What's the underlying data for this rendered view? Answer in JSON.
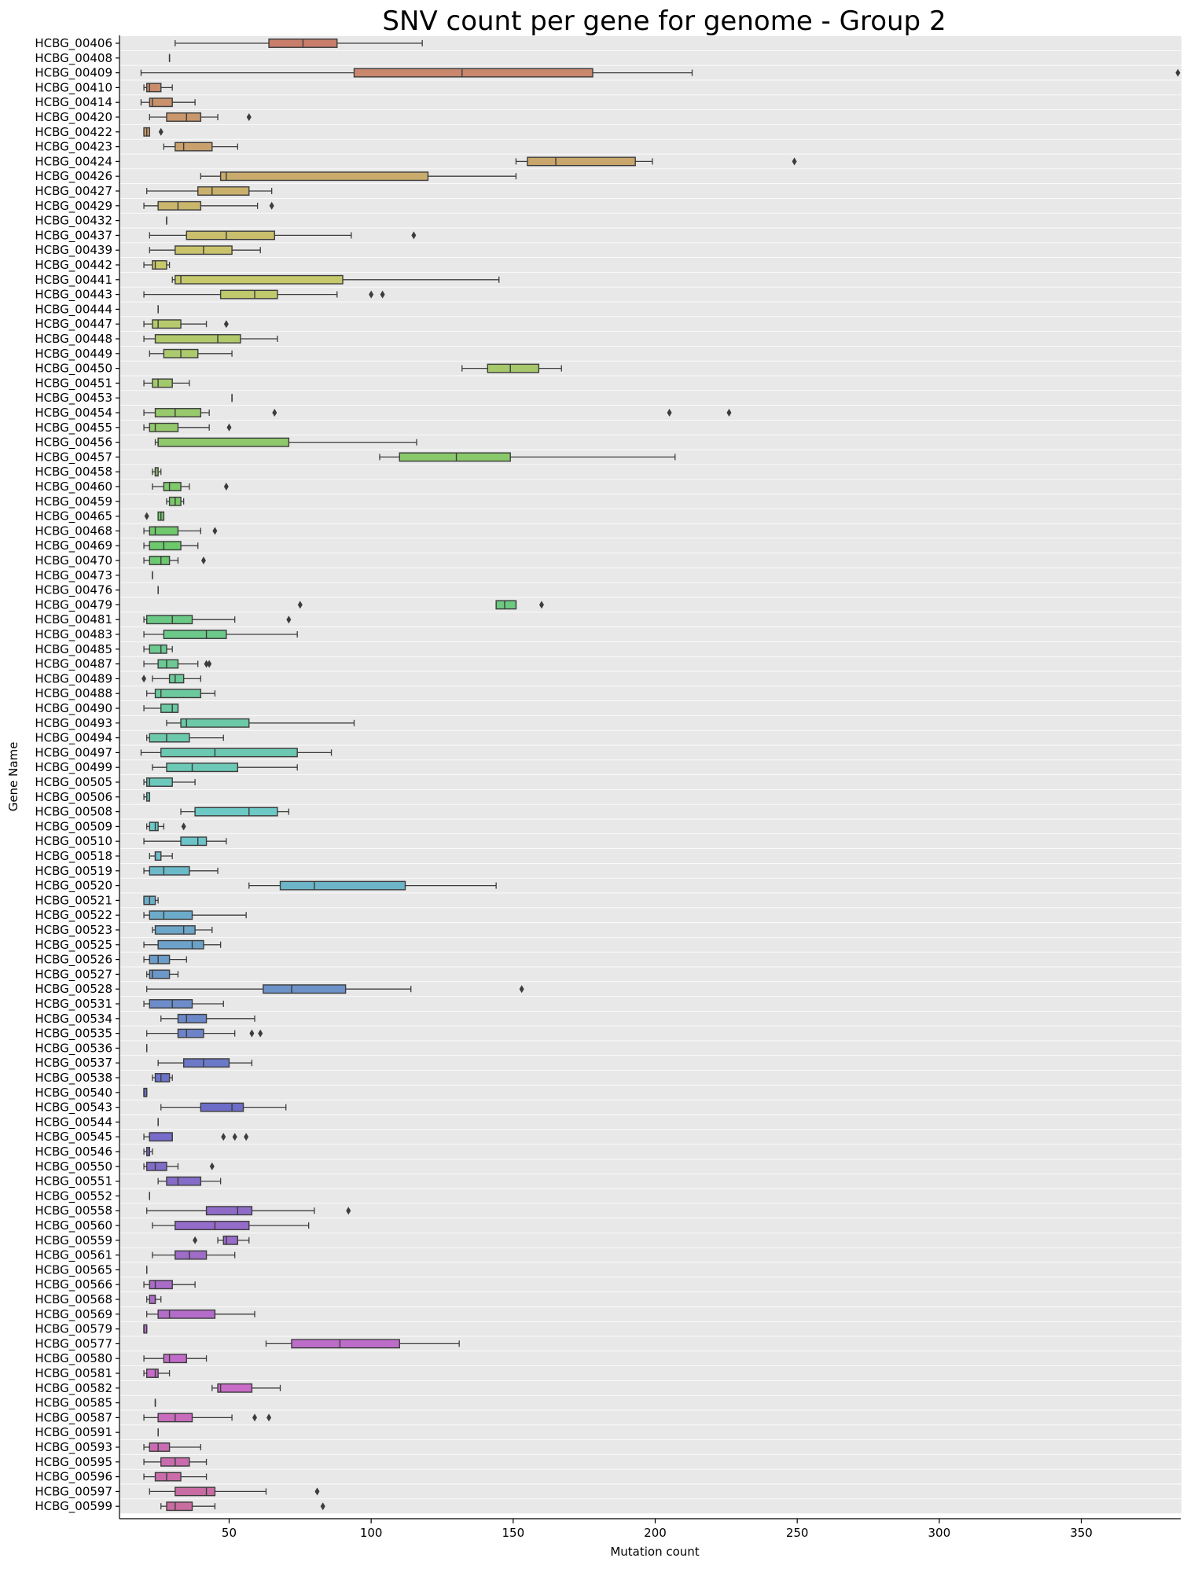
{
  "chart_data": {
    "type": "box",
    "orientation": "horizontal",
    "title": "SNV count per gene for genome - Group 2",
    "xlabel": "Mutation count",
    "ylabel": "Gene Name",
    "xlim": [
      15,
      385
    ],
    "x_ticks": [
      50,
      100,
      150,
      200,
      250,
      300,
      350
    ],
    "grid": false,
    "alternating_row_bands": true,
    "band_color": "#e8e8e8",
    "palette": "husl",
    "categories": [
      "HCBG_00406",
      "HCBG_00408",
      "HCBG_00409",
      "HCBG_00410",
      "HCBG_00414",
      "HCBG_00420",
      "HCBG_00422",
      "HCBG_00423",
      "HCBG_00424",
      "HCBG_00426",
      "HCBG_00427",
      "HCBG_00429",
      "HCBG_00432",
      "HCBG_00437",
      "HCBG_00439",
      "HCBG_00442",
      "HCBG_00441",
      "HCBG_00443",
      "HCBG_00444",
      "HCBG_00447",
      "HCBG_00448",
      "HCBG_00449",
      "HCBG_00450",
      "HCBG_00451",
      "HCBG_00453",
      "HCBG_00454",
      "HCBG_00455",
      "HCBG_00456",
      "HCBG_00457",
      "HCBG_00458",
      "HCBG_00460",
      "HCBG_00459",
      "HCBG_00465",
      "HCBG_00468",
      "HCBG_00469",
      "HCBG_00470",
      "HCBG_00473",
      "HCBG_00476",
      "HCBG_00479",
      "HCBG_00481",
      "HCBG_00483",
      "HCBG_00485",
      "HCBG_00487",
      "HCBG_00489",
      "HCBG_00488",
      "HCBG_00490",
      "HCBG_00493",
      "HCBG_00494",
      "HCBG_00497",
      "HCBG_00499",
      "HCBG_00505",
      "HCBG_00506",
      "HCBG_00508",
      "HCBG_00509",
      "HCBG_00510",
      "HCBG_00518",
      "HCBG_00519",
      "HCBG_00520",
      "HCBG_00521",
      "HCBG_00522",
      "HCBG_00523",
      "HCBG_00525",
      "HCBG_00526",
      "HCBG_00527",
      "HCBG_00528",
      "HCBG_00531",
      "HCBG_00534",
      "HCBG_00535",
      "HCBG_00536",
      "HCBG_00537",
      "HCBG_00538",
      "HCBG_00540",
      "HCBG_00543",
      "HCBG_00544",
      "HCBG_00545",
      "HCBG_00546",
      "HCBG_00550",
      "HCBG_00551",
      "HCBG_00552",
      "HCBG_00558",
      "HCBG_00560",
      "HCBG_00559",
      "HCBG_00561",
      "HCBG_00565",
      "HCBG_00566",
      "HCBG_00568",
      "HCBG_00569",
      "HCBG_00579",
      "HCBG_00577",
      "HCBG_00580",
      "HCBG_00581",
      "HCBG_00582",
      "HCBG_00585",
      "HCBG_00587",
      "HCBG_00591",
      "HCBG_00593",
      "HCBG_00595",
      "HCBG_00596",
      "HCBG_00597",
      "HCBG_00599"
    ],
    "stats": [
      [
        31,
        64,
        76,
        88,
        118,
        []
      ],
      [
        29,
        29,
        29,
        29,
        29,
        []
      ],
      [
        19,
        94,
        132,
        178,
        213,
        [
          384
        ]
      ],
      [
        20,
        21,
        22,
        26,
        30,
        []
      ],
      [
        19,
        22,
        23,
        30,
        38,
        []
      ],
      [
        22,
        28,
        35,
        40,
        46,
        [
          57
        ]
      ],
      [
        20,
        20,
        21,
        22,
        22,
        [
          26
        ]
      ],
      [
        27,
        31,
        34,
        44,
        53,
        []
      ],
      [
        151,
        155,
        165,
        193,
        199,
        [
          249
        ]
      ],
      [
        40,
        47,
        49,
        120,
        151,
        []
      ],
      [
        21,
        39,
        44,
        57,
        65,
        []
      ],
      [
        20,
        25,
        32,
        40,
        60,
        [
          65
        ]
      ],
      [
        28,
        28,
        28,
        28,
        28,
        []
      ],
      [
        22,
        35,
        49,
        66,
        93,
        [
          115
        ]
      ],
      [
        22,
        31,
        41,
        51,
        61,
        []
      ],
      [
        20,
        23,
        24,
        28,
        29,
        []
      ],
      [
        30,
        31,
        33,
        90,
        145,
        []
      ],
      [
        20,
        47,
        59,
        67,
        88,
        [
          100,
          104
        ]
      ],
      [
        25,
        25,
        25,
        25,
        25,
        []
      ],
      [
        20,
        23,
        25,
        33,
        42,
        [
          49
        ]
      ],
      [
        20,
        24,
        46,
        54,
        67,
        []
      ],
      [
        22,
        27,
        33,
        39,
        51,
        []
      ],
      [
        132,
        141,
        149,
        159,
        167,
        []
      ],
      [
        20,
        23,
        25,
        30,
        36,
        []
      ],
      [
        51,
        51,
        51,
        51,
        51,
        []
      ],
      [
        20,
        24,
        31,
        40,
        43,
        [
          66,
          205,
          226
        ]
      ],
      [
        20,
        22,
        24,
        32,
        43,
        [
          50
        ]
      ],
      [
        24,
        25,
        25,
        71,
        116,
        []
      ],
      [
        103,
        110,
        130,
        149,
        207,
        []
      ],
      [
        23,
        24,
        24,
        25,
        26,
        []
      ],
      [
        23,
        27,
        29,
        33,
        36,
        [
          49
        ]
      ],
      [
        28,
        29,
        31,
        33,
        34,
        []
      ],
      [
        25,
        25,
        26,
        27,
        27,
        [
          21
        ]
      ],
      [
        20,
        22,
        24,
        32,
        40,
        [
          45
        ]
      ],
      [
        20,
        22,
        27,
        33,
        39,
        []
      ],
      [
        20,
        22,
        26,
        29,
        32,
        [
          41
        ]
      ],
      [
        23,
        23,
        23,
        23,
        23,
        []
      ],
      [
        25,
        25,
        25,
        25,
        25,
        []
      ],
      [
        144,
        144,
        147,
        151,
        151,
        [
          75,
          160
        ]
      ],
      [
        20,
        21,
        30,
        37,
        52,
        [
          71
        ]
      ],
      [
        20,
        27,
        42,
        49,
        74,
        []
      ],
      [
        20,
        22,
        26,
        28,
        30,
        []
      ],
      [
        20,
        25,
        28,
        32,
        39,
        [
          42,
          43
        ]
      ],
      [
        23,
        29,
        31,
        34,
        40,
        [
          20
        ]
      ],
      [
        21,
        24,
        26,
        40,
        45,
        []
      ],
      [
        20,
        26,
        30,
        32,
        32,
        []
      ],
      [
        28,
        33,
        35,
        57,
        94,
        []
      ],
      [
        21,
        22,
        28,
        36,
        48,
        []
      ],
      [
        19,
        26,
        45,
        74,
        86,
        []
      ],
      [
        23,
        28,
        37,
        53,
        74,
        []
      ],
      [
        20,
        21,
        22,
        30,
        38,
        []
      ],
      [
        20,
        21,
        21,
        22,
        22,
        []
      ],
      [
        33,
        38,
        57,
        67,
        71,
        []
      ],
      [
        21,
        22,
        24,
        25,
        27,
        [
          34
        ]
      ],
      [
        20,
        33,
        39,
        42,
        49,
        []
      ],
      [
        22,
        24,
        24,
        26,
        30,
        []
      ],
      [
        20,
        22,
        27,
        36,
        46,
        []
      ],
      [
        57,
        68,
        80,
        112,
        144,
        []
      ],
      [
        20,
        20,
        22,
        24,
        25,
        []
      ],
      [
        20,
        22,
        27,
        37,
        56,
        []
      ],
      [
        23,
        24,
        34,
        38,
        44,
        []
      ],
      [
        20,
        25,
        37,
        41,
        47,
        []
      ],
      [
        20,
        22,
        25,
        29,
        35,
        []
      ],
      [
        21,
        22,
        23,
        29,
        32,
        []
      ],
      [
        21,
        62,
        72,
        91,
        114,
        [
          153
        ]
      ],
      [
        20,
        22,
        30,
        37,
        48,
        []
      ],
      [
        26,
        32,
        35,
        42,
        59,
        []
      ],
      [
        21,
        32,
        35,
        41,
        52,
        [
          58,
          61
        ]
      ],
      [
        21,
        21,
        21,
        21,
        21,
        []
      ],
      [
        25,
        34,
        41,
        50,
        58,
        []
      ],
      [
        23,
        24,
        26,
        29,
        30,
        []
      ],
      [
        20,
        20,
        20,
        21,
        21,
        []
      ],
      [
        26,
        40,
        51,
        55,
        70,
        []
      ],
      [
        25,
        25,
        25,
        25,
        25,
        []
      ],
      [
        20,
        22,
        22,
        30,
        30,
        [
          48,
          52,
          56
        ]
      ],
      [
        20,
        21,
        22,
        22,
        23,
        []
      ],
      [
        20,
        21,
        24,
        28,
        32,
        [
          44
        ]
      ],
      [
        25,
        28,
        32,
        40,
        47,
        []
      ],
      [
        22,
        22,
        22,
        22,
        22,
        []
      ],
      [
        21,
        42,
        53,
        58,
        80,
        [
          92
        ]
      ],
      [
        23,
        31,
        45,
        57,
        78,
        []
      ],
      [
        46,
        48,
        49,
        53,
        57,
        [
          38
        ]
      ],
      [
        23,
        31,
        36,
        42,
        52,
        []
      ],
      [
        21,
        21,
        21,
        21,
        21,
        []
      ],
      [
        20,
        22,
        24,
        30,
        38,
        []
      ],
      [
        21,
        22,
        24,
        24,
        26,
        []
      ],
      [
        21,
        25,
        29,
        45,
        59,
        []
      ],
      [
        20,
        20,
        20,
        21,
        21,
        []
      ],
      [
        63,
        72,
        89,
        110,
        131,
        []
      ],
      [
        20,
        27,
        29,
        35,
        42,
        []
      ],
      [
        20,
        21,
        24,
        25,
        29,
        []
      ],
      [
        44,
        46,
        47,
        58,
        68,
        []
      ],
      [
        24,
        24,
        24,
        24,
        24,
        []
      ],
      [
        20,
        25,
        31,
        37,
        51,
        [
          59,
          64
        ]
      ],
      [
        25,
        25,
        25,
        25,
        25,
        []
      ],
      [
        20,
        22,
        25,
        29,
        40,
        []
      ],
      [
        20,
        26,
        31,
        36,
        42,
        []
      ],
      [
        20,
        24,
        28,
        33,
        42,
        []
      ],
      [
        22,
        31,
        42,
        45,
        63,
        [
          81
        ]
      ],
      [
        26,
        28,
        31,
        37,
        45,
        [
          83
        ]
      ]
    ]
  }
}
